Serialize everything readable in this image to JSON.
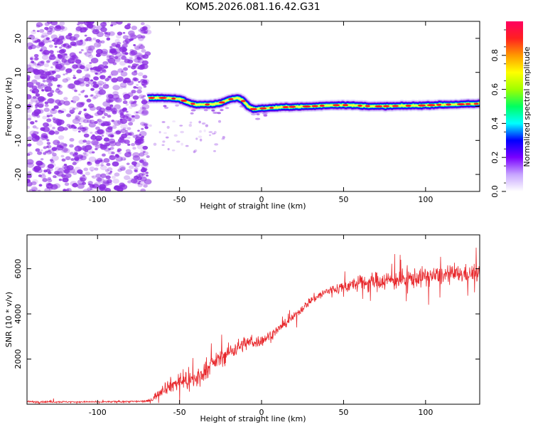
{
  "title": "KOM5.2026.081.16.42.G31",
  "colors": {
    "snr_line": "#e8282c",
    "speckle": "#8a2be2",
    "ridge_edge": "#0000ff",
    "ridge_mid": "#00ffb0",
    "ridge_core": "#ff2020",
    "axis": "#000000"
  },
  "chart_data": [
    {
      "type": "heatmap",
      "name": "spectrogram",
      "xlabel": "Height of straight line (km)",
      "ylabel": "Frequency (Hz)",
      "xlim": [
        -143,
        133
      ],
      "ylim": [
        -25,
        25
      ],
      "xticks": [
        -100,
        -50,
        0,
        50,
        100
      ],
      "xtick_labels": [
        "-100",
        "-50",
        "0",
        "50",
        "100"
      ],
      "yticks": [
        -20,
        -10,
        0,
        10,
        20
      ],
      "ytick_labels": [
        "-20",
        "-10",
        "0",
        "10",
        "20"
      ],
      "noise_region_x": [
        -143,
        -69
      ],
      "ridge": {
        "x": [
          -69,
          -60,
          -50,
          -45,
          -40,
          -35,
          -30,
          -25,
          -20,
          -15,
          -12,
          -8,
          -5,
          0,
          10,
          20,
          30,
          40,
          50,
          60,
          70,
          80,
          90,
          100,
          110,
          120,
          133
        ],
        "y": [
          2.5,
          2.5,
          2.2,
          1.2,
          0.5,
          0.5,
          0.6,
          1.0,
          2.0,
          2.5,
          2.0,
          0.0,
          -0.8,
          -0.6,
          -0.3,
          -0.1,
          0.0,
          0.3,
          0.4,
          0.2,
          0.0,
          0.1,
          0.2,
          0.3,
          0.5,
          0.6,
          0.8
        ]
      },
      "colorbar": {
        "label": "Normalized spectral amplitude",
        "range": [
          0.0,
          1.0
        ],
        "ticks": [
          0.0,
          0.2,
          0.4,
          0.6,
          0.8
        ],
        "tick_labels": [
          "0.0",
          "0.2",
          "0.4",
          "0.6",
          "0.8"
        ],
        "colors": [
          "#ffffff",
          "#c7a5ff",
          "#7a00ff",
          "#0000ff",
          "#00ffff",
          "#00ff60",
          "#a0ff00",
          "#ffff00",
          "#ff9900",
          "#ff2020",
          "#ff0060"
        ]
      }
    },
    {
      "type": "line",
      "name": "snr",
      "xlabel": "Height of straight line (km)",
      "ylabel": "SNR (10 * v/v)",
      "xlim": [
        -143,
        133
      ],
      "ylim": [
        0,
        7500
      ],
      "xticks": [
        -100,
        -50,
        0,
        50,
        100
      ],
      "xtick_labels": [
        "-100",
        "-50",
        "0",
        "50",
        "100"
      ],
      "yticks": [
        2000,
        4000,
        6000
      ],
      "ytick_labels": [
        "2000",
        "4000",
        "6000"
      ],
      "envelope": {
        "x": [
          -143,
          -100,
          -70,
          -67,
          -60,
          -50,
          -40,
          -30,
          -20,
          -10,
          0,
          10,
          20,
          30,
          40,
          50,
          60,
          70,
          80,
          90,
          100,
          110,
          120,
          133
        ],
        "mean": [
          110,
          100,
          130,
          200,
          700,
          1000,
          1100,
          1800,
          2300,
          2700,
          2800,
          3300,
          3900,
          4600,
          5000,
          5200,
          5350,
          5450,
          5500,
          5550,
          5650,
          5700,
          5750,
          5800
        ],
        "noise": [
          80,
          60,
          80,
          200,
          500,
          700,
          800,
          600,
          700,
          600,
          450,
          350,
          300,
          350,
          400,
          500,
          600,
          750,
          800,
          800,
          750,
          700,
          700,
          700
        ]
      }
    }
  ]
}
